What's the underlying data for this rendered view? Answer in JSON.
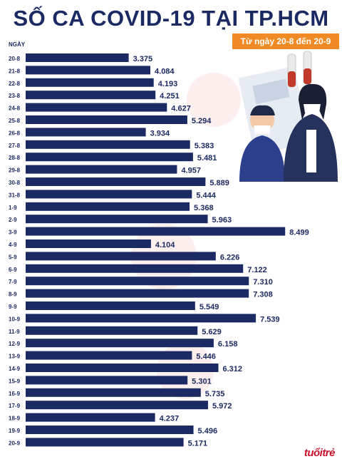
{
  "header": {
    "title": "SỐ CA COVID-19 TẠI TP.HCM",
    "date_range": "Từ ngày 20-8 đến 20-9",
    "axis_label": "NGÀY"
  },
  "branding": {
    "logo_text": "tuổitrẻ"
  },
  "colors": {
    "bar": "#1c2a63",
    "accent": "#f08a24",
    "title": "#1c2a63",
    "logo": "#c8102e"
  },
  "chart_data": {
    "type": "bar",
    "orientation": "horizontal",
    "title": "SỐ CA COVID-19 TẠI TP.HCM",
    "subtitle": "Từ ngày 20-8 đến 20-9",
    "ylabel": "NGÀY",
    "categories": [
      "20-8",
      "21-8",
      "22-8",
      "23-8",
      "24-8",
      "25-8",
      "26-8",
      "27-8",
      "28-8",
      "29-8",
      "30-8",
      "31-8",
      "1-9",
      "2-9",
      "3-9",
      "4-9",
      "5-9",
      "6-9",
      "7-9",
      "8-9",
      "9-9",
      "10-9",
      "11-9",
      "12-9",
      "13-9",
      "14-9",
      "15-9",
      "16-9",
      "17-9",
      "18-9",
      "19-9",
      "20-9"
    ],
    "values": [
      3375,
      4084,
      4193,
      4251,
      4627,
      5294,
      3934,
      5383,
      5481,
      4957,
      5889,
      5444,
      5368,
      5963,
      8499,
      4104,
      6226,
      7122,
      7310,
      7308,
      5549,
      7539,
      5629,
      6158,
      5446,
      6312,
      5301,
      5735,
      5972,
      4237,
      5496,
      5171
    ],
    "value_labels": [
      "3.375",
      "4.084",
      "4.193",
      "4.251",
      "4.627",
      "5.294",
      "3.934",
      "5.383",
      "5.481",
      "4.957",
      "5.889",
      "5.444",
      "5.368",
      "5.963",
      "8.499",
      "4.104",
      "6.226",
      "7.122",
      "7.310",
      "7.308",
      "5.549",
      "7.539",
      "5.629",
      "6.158",
      "5.446",
      "6.312",
      "5.301",
      "5.735",
      "5.972",
      "4.237",
      "5.496",
      "5.171"
    ],
    "xlim": [
      0,
      9100
    ],
    "grid": false,
    "legend": "none"
  }
}
